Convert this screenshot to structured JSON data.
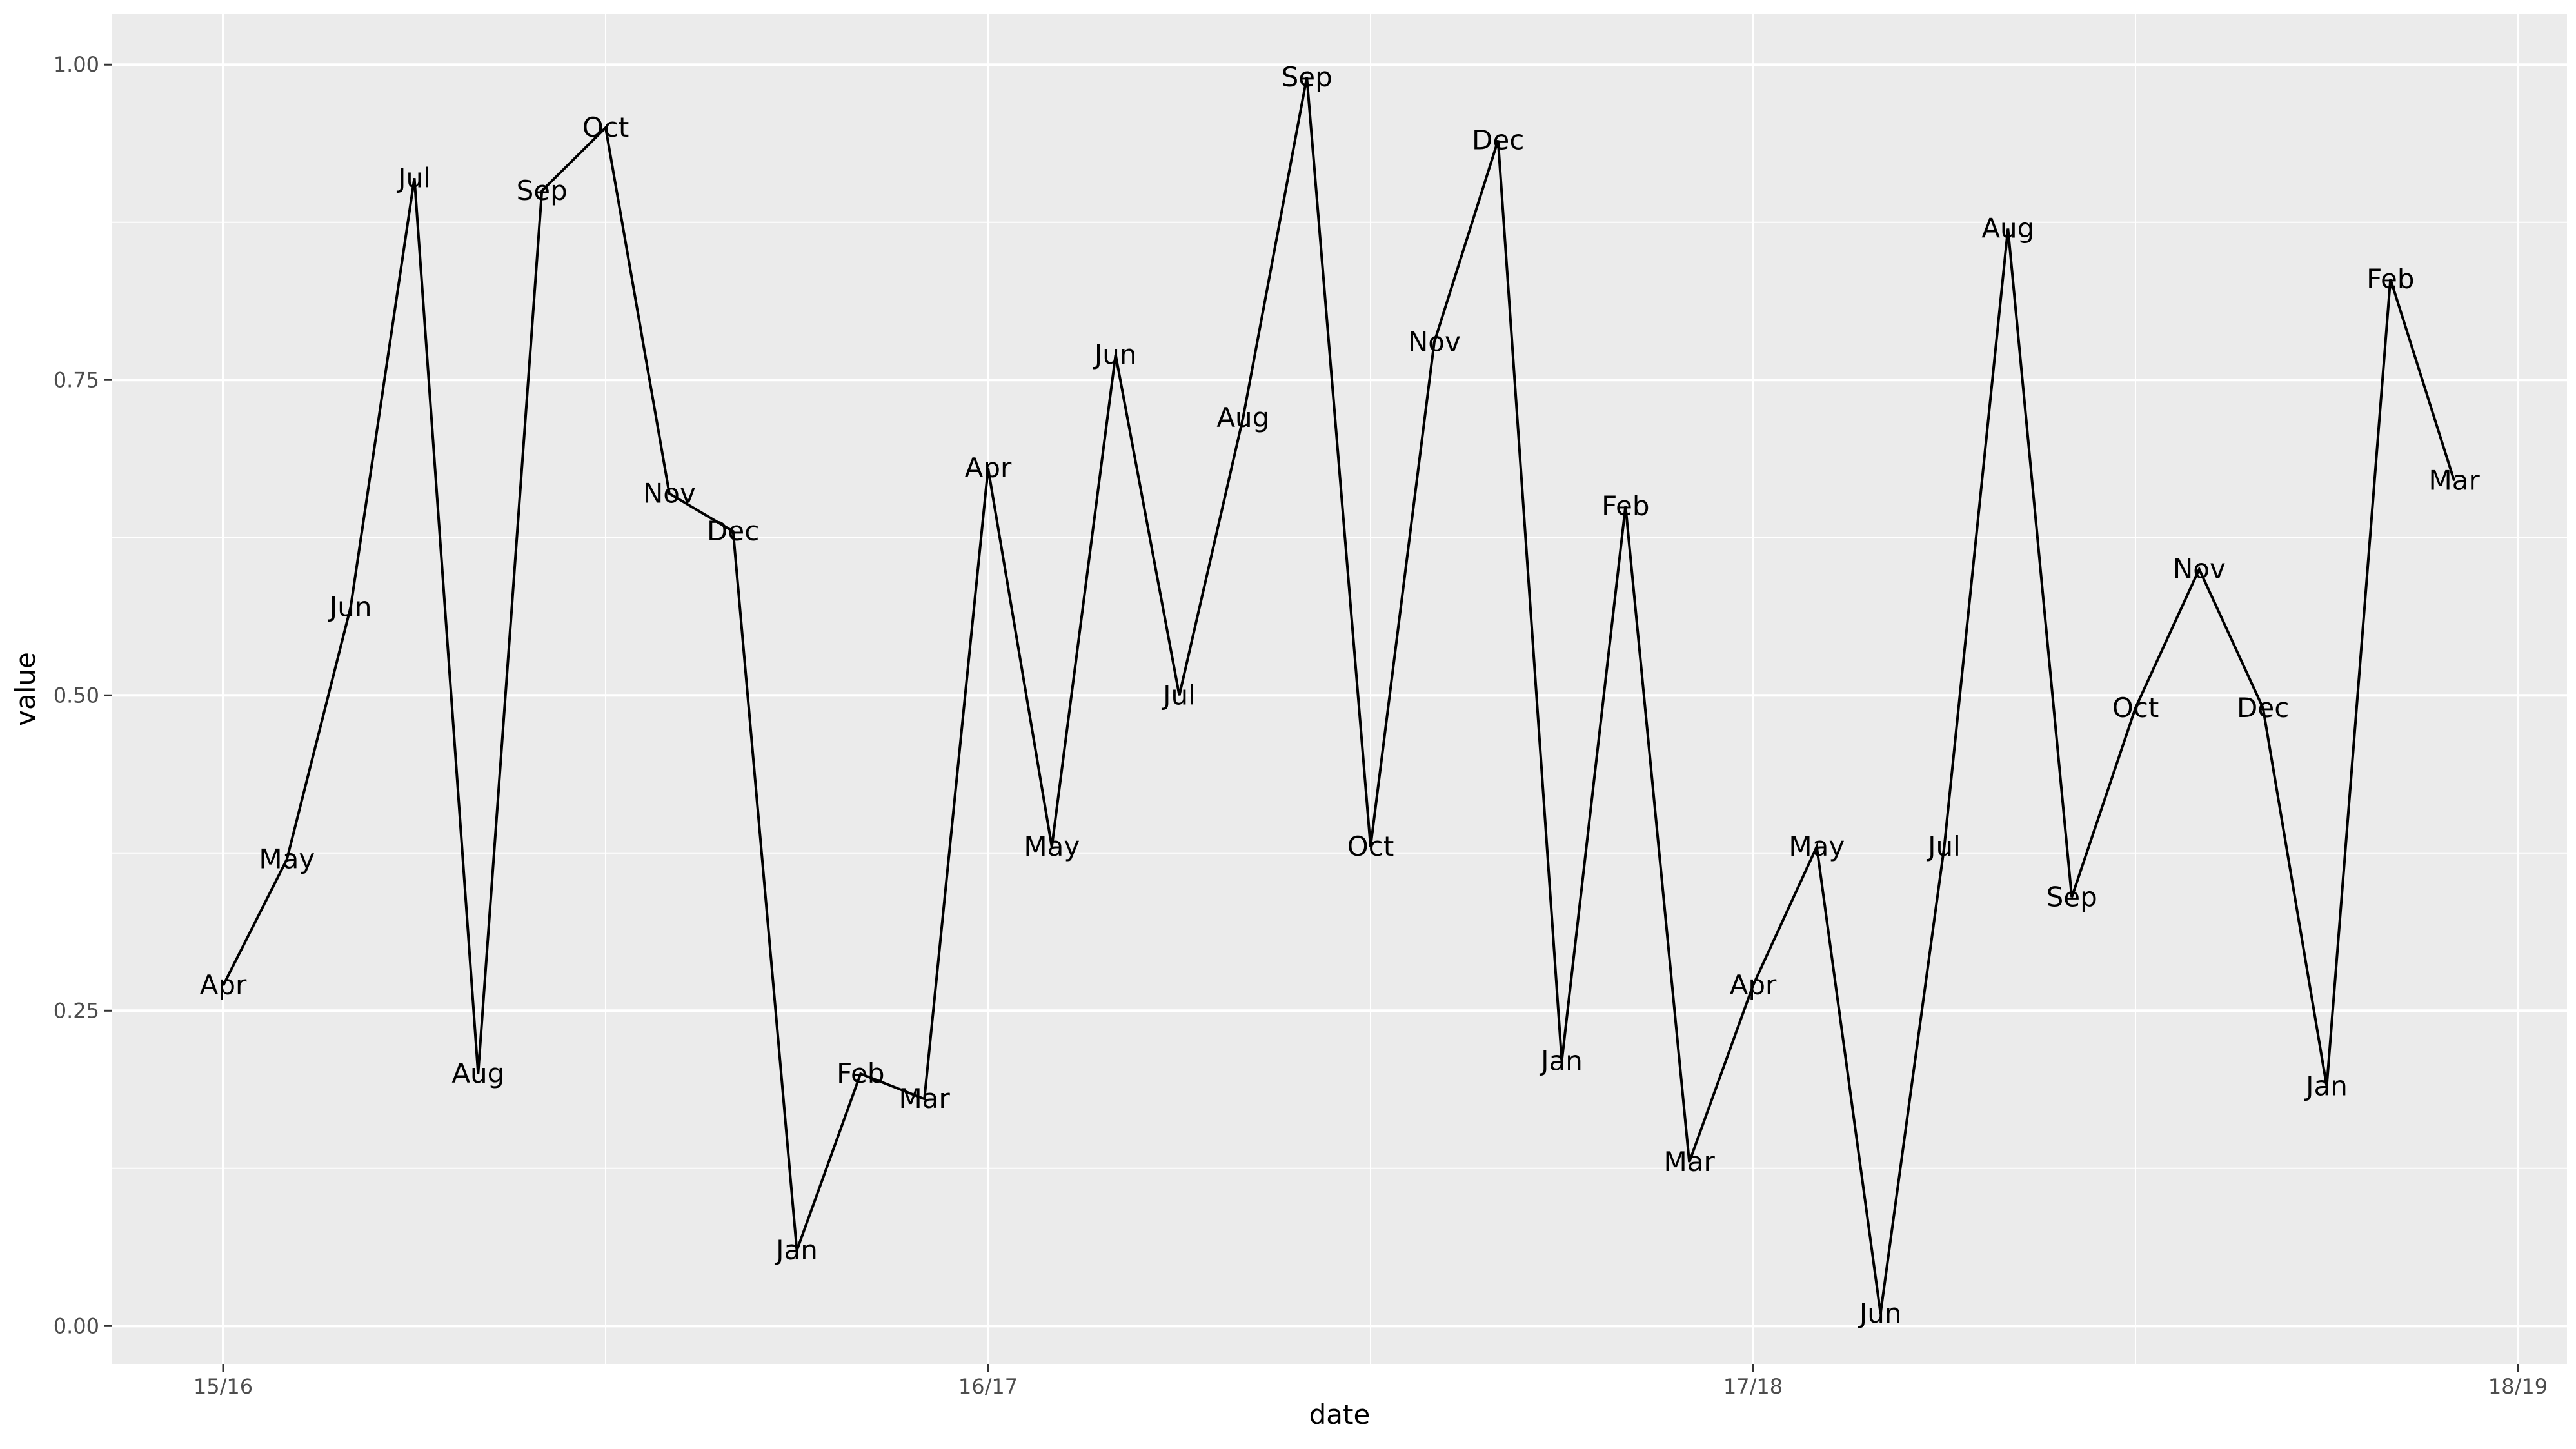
{
  "chart_data": {
    "type": "line",
    "title": "",
    "xlabel": "date",
    "ylabel": "value",
    "x_ticks": [
      "15/16",
      "16/17",
      "17/18",
      "18/19"
    ],
    "y_ticks": [
      "0.00",
      "0.25",
      "0.50",
      "0.75",
      "1.00"
    ],
    "ylim": [
      -0.03,
      1.04
    ],
    "grid": true,
    "legend": "none",
    "colors": {
      "panel": "#ebebeb",
      "grid": "#ffffff",
      "line": "#000000",
      "tick_text": "#4d4d4d"
    },
    "series": [
      {
        "points": [
          {
            "label": "Apr",
            "value": 0.27
          },
          {
            "label": "May",
            "value": 0.37
          },
          {
            "label": "Jun",
            "value": 0.57
          },
          {
            "label": "Jul",
            "value": 0.91
          },
          {
            "label": "Aug",
            "value": 0.2
          },
          {
            "label": "Sep",
            "value": 0.9
          },
          {
            "label": "Oct",
            "value": 0.95
          },
          {
            "label": "Nov",
            "value": 0.66
          },
          {
            "label": "Dec",
            "value": 0.63
          },
          {
            "label": "Jan",
            "value": 0.06
          },
          {
            "label": "Feb",
            "value": 0.2
          },
          {
            "label": "Mar",
            "value": 0.18
          },
          {
            "label": "Apr",
            "value": 0.68
          },
          {
            "label": "May",
            "value": 0.38
          },
          {
            "label": "Jun",
            "value": 0.77
          },
          {
            "label": "Jul",
            "value": 0.5
          },
          {
            "label": "Aug",
            "value": 0.72
          },
          {
            "label": "Sep",
            "value": 0.99
          },
          {
            "label": "Oct",
            "value": 0.38
          },
          {
            "label": "Nov",
            "value": 0.78
          },
          {
            "label": "Dec",
            "value": 0.94
          },
          {
            "label": "Jan",
            "value": 0.21
          },
          {
            "label": "Feb",
            "value": 0.65
          },
          {
            "label": "Mar",
            "value": 0.13
          },
          {
            "label": "Apr",
            "value": 0.27
          },
          {
            "label": "May",
            "value": 0.38
          },
          {
            "label": "Jun",
            "value": 0.01
          },
          {
            "label": "Jul",
            "value": 0.38
          },
          {
            "label": "Aug",
            "value": 0.87
          },
          {
            "label": "Sep",
            "value": 0.34
          },
          {
            "label": "Oct",
            "value": 0.49
          },
          {
            "label": "Nov",
            "value": 0.6
          },
          {
            "label": "Dec",
            "value": 0.49
          },
          {
            "label": "Jan",
            "value": 0.19
          },
          {
            "label": "Feb",
            "value": 0.83
          },
          {
            "label": "Mar",
            "value": 0.67
          }
        ]
      }
    ]
  }
}
